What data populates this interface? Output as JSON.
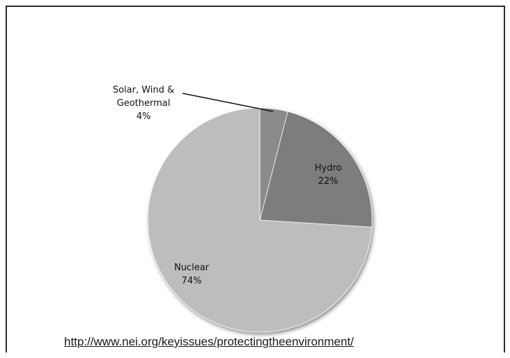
{
  "chart_data": {
    "type": "pie",
    "categories": [
      "Solar, Wind & Geothermal",
      "Hydro",
      "Nuclear"
    ],
    "values": [
      4,
      22,
      74
    ],
    "label_lines": [
      [
        "Solar, Wind &",
        "Geothermal",
        "4%"
      ],
      [
        "Hydro",
        "22%"
      ],
      [
        "Nuclear",
        "74%"
      ]
    ],
    "colors": [
      "#8a8a8a",
      "#7d7d7d",
      "#bdbdbd"
    ],
    "start_angle": "12 o'clock",
    "direction": "clockwise",
    "legend": "none",
    "title": ""
  },
  "source": {
    "url": "http://www.nei.org/keyissues/protectingtheenvironment/"
  }
}
